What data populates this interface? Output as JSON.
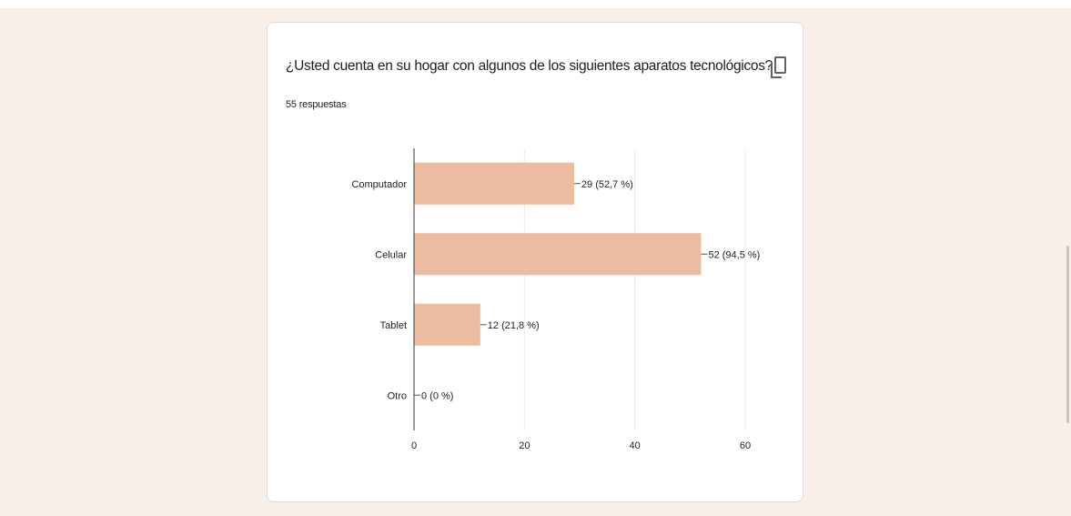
{
  "question": {
    "title": "¿Usted cuenta en su hogar con algunos de los siguientes aparatos tecnológicos?",
    "responses": "55 respuestas",
    "copy_icon": "copy-icon"
  },
  "colors": {
    "bar": "#ebbc9f",
    "page_bg": "#f9efe9",
    "grid": "#ebebeb",
    "axis": "#333333"
  },
  "chart_data": {
    "type": "bar",
    "orientation": "horizontal",
    "categories": [
      "Computador",
      "Celular",
      "Tablet",
      "Otro"
    ],
    "values": [
      29,
      52,
      12,
      0
    ],
    "data_labels": [
      "29 (52,7 %)",
      "52 (94,5 %)",
      "12 (21,8 %)",
      "0 (0 %)"
    ],
    "xlim": [
      0,
      60
    ],
    "xticks": [
      0,
      20,
      40,
      60
    ],
    "grid": true
  }
}
